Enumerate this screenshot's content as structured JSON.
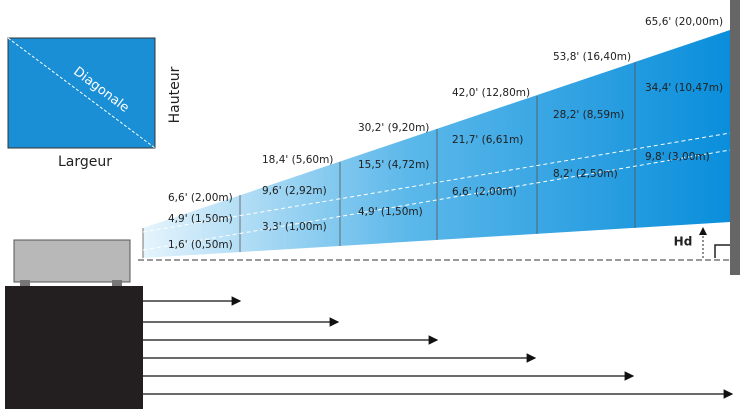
{
  "screen": {
    "diagonal": "Diagonale",
    "height": "Hauteur",
    "width": "Largeur"
  },
  "columns": [
    {
      "diagonal": "6,6' (2,00m)",
      "width": "4,9' (1,50m)",
      "height": "1,6' (0,50m)"
    },
    {
      "diagonal": "18,4' (5,60m)",
      "width": "9,6' (2,92m)",
      "height": "3,3' (1,00m)"
    },
    {
      "diagonal": "30,2' (9,20m)",
      "width": "15,5' (4,72m)",
      "height": "4,9' (1,50m)"
    },
    {
      "diagonal": "42,0' (12,80m)",
      "width": "21,7' (6,61m)",
      "height": "6,6' (2,00m)"
    },
    {
      "diagonal": "53,8' (16,40m)",
      "width": "28,2' (8,59m)",
      "height": "8,2' (2,50m)"
    },
    {
      "diagonal": "65,6' (20,00m)",
      "width": "34,4' (10,47m)",
      "height": "9,8' (3,00m)"
    }
  ],
  "offset_label": "Hd"
}
